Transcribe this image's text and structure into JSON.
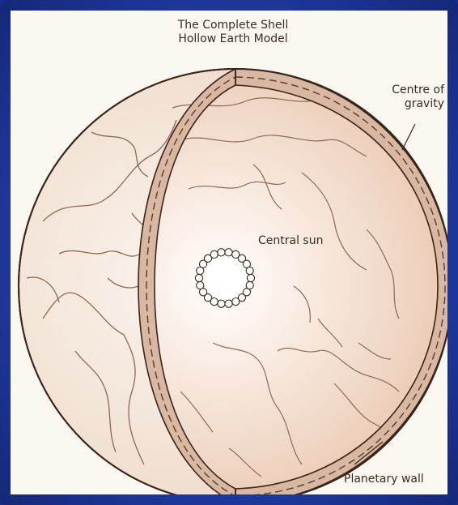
{
  "diagram": {
    "title_line1": "The Complete Shell",
    "title_line2": "Hollow Earth Model",
    "label_centre_line1": "Centre of",
    "label_centre_line2": "gravity",
    "label_sun": "Central sun",
    "label_wall": "Planetary wall"
  },
  "colors": {
    "frame": "#1b2f8a",
    "panel": "#fbf7f1",
    "shell": "#d8b8a2",
    "outline": "#3b2418",
    "land_line": "#8a6a55",
    "inner_fill": "#f2dccd"
  }
}
